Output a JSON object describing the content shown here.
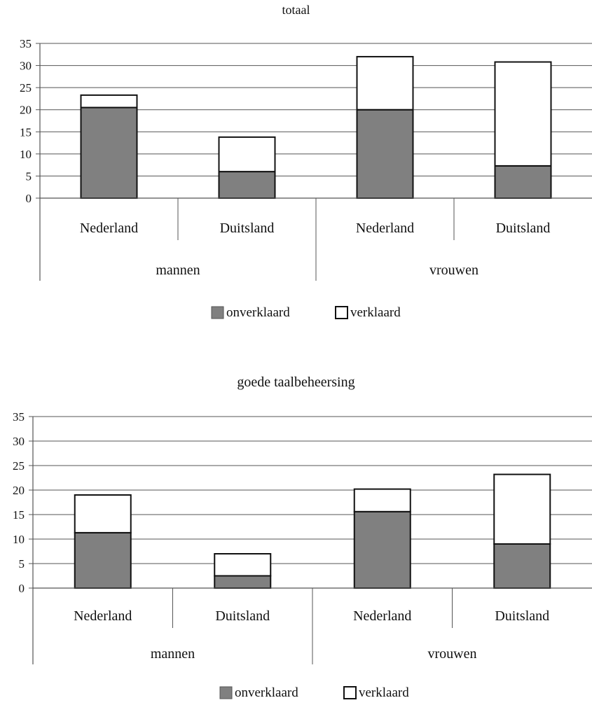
{
  "chart_data": [
    {
      "type": "bar",
      "stacked": true,
      "title": "totaal",
      "ylim": [
        0,
        35
      ],
      "yticks": [
        "0",
        "5",
        "10",
        "15",
        "20",
        "25",
        "30",
        "35"
      ],
      "categories": [
        "Nederland",
        "Duitsland",
        "Nederland",
        "Duitsland"
      ],
      "groups": [
        "mannen",
        "vrouwen"
      ],
      "series": [
        {
          "name": "onverklaard",
          "color": "#808080",
          "values": [
            20.5,
            6,
            20,
            7.3
          ]
        },
        {
          "name": "verklaard",
          "color": "#ffffff",
          "values": [
            2.8,
            7.8,
            12,
            23.5
          ]
        }
      ],
      "legend": {
        "position": "bottom",
        "items": [
          "onverklaard",
          "verklaard"
        ]
      },
      "grid": true
    },
    {
      "type": "bar",
      "stacked": true,
      "title": "goede taalbeheersing",
      "ylim": [
        0,
        35
      ],
      "yticks": [
        "0",
        "5",
        "10",
        "15",
        "20",
        "25",
        "30",
        "35"
      ],
      "categories": [
        "Nederland",
        "Duitsland",
        "Nederland",
        "Duitsland"
      ],
      "groups": [
        "mannen",
        "vrouwen"
      ],
      "series": [
        {
          "name": "onverklaard",
          "color": "#808080",
          "values": [
            11.3,
            2.5,
            15.6,
            9
          ]
        },
        {
          "name": "verklaard",
          "color": "#ffffff",
          "values": [
            7.7,
            4.5,
            4.6,
            14.2
          ]
        }
      ],
      "legend": {
        "position": "bottom",
        "items": [
          "onverklaard",
          "verklaard"
        ]
      },
      "grid": true
    }
  ]
}
